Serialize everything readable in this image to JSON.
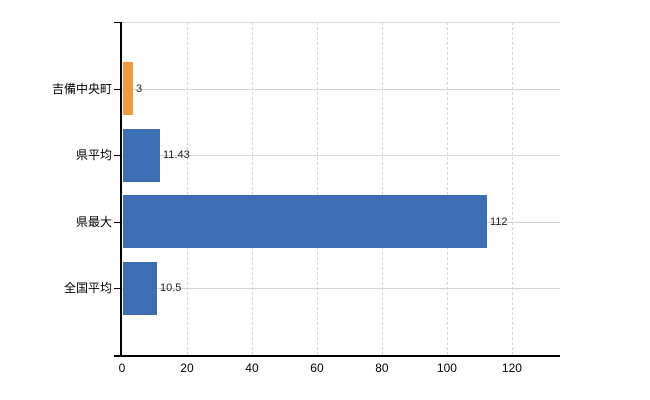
{
  "chart_data": {
    "type": "bar",
    "orientation": "horizontal",
    "title": "",
    "xlabel": "",
    "ylabel": "",
    "categories": [
      "吉備中央町",
      "県平均",
      "県最大",
      "全国平均"
    ],
    "values": [
      3,
      11.43,
      112,
      10.5
    ],
    "value_labels": [
      "3",
      "11.43",
      "112",
      "10.5"
    ],
    "bar_colors": [
      "#ef993c",
      "#3d6eb3",
      "#3d6eb3",
      "#3d6eb3"
    ],
    "highlight_color": "#ef993c",
    "series_color": "#3d6eb3",
    "xlim": [
      0,
      134.8
    ],
    "x_ticks": [
      0,
      20,
      40,
      60,
      80,
      100,
      120
    ],
    "grid": true,
    "legend": "none",
    "background_color": "#ffffff",
    "axis_color": "#000000",
    "gridline_color": "#d8d8d8"
  }
}
